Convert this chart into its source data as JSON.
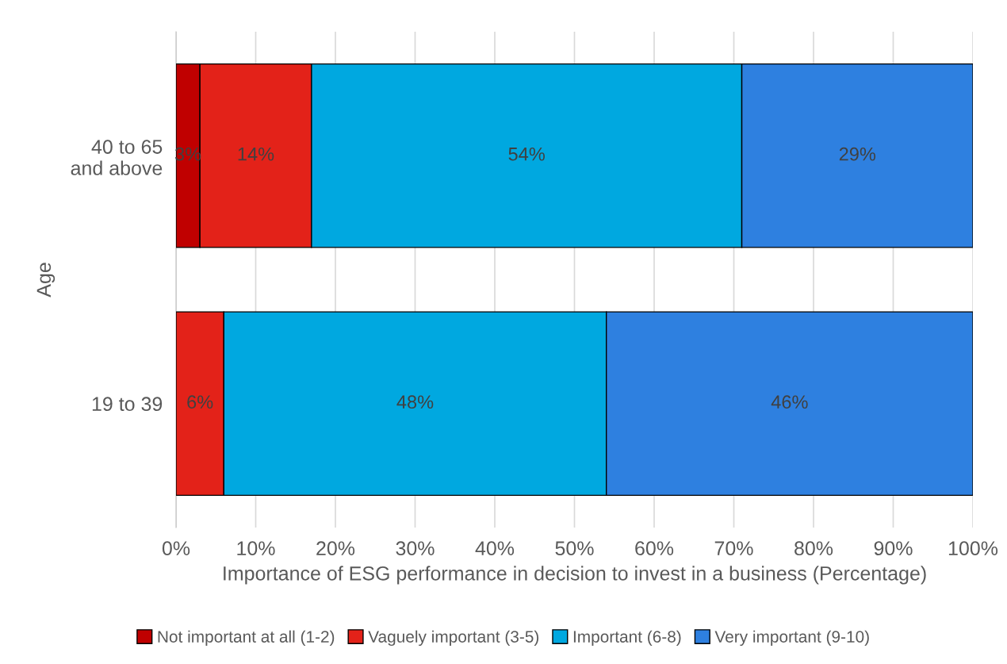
{
  "chart_data": {
    "type": "bar",
    "orientation": "horizontal",
    "stacked": true,
    "categories": [
      "40 to 65\nand above",
      "19 to 39"
    ],
    "series": [
      {
        "name": "Not important at all (1-2)",
        "color": "#c00000",
        "values": [
          3,
          null
        ],
        "value_labels": [
          "3%",
          null
        ]
      },
      {
        "name": "Vaguely important (3-5)",
        "color": "#e32219",
        "values": [
          14,
          6
        ],
        "value_labels": [
          "14%",
          "6%"
        ]
      },
      {
        "name": "Important (6-8)",
        "color": "#00a8e0",
        "values": [
          54,
          48
        ],
        "value_labels": [
          "54%",
          "48%"
        ]
      },
      {
        "name": "Very important (9-10)",
        "color": "#2e80e0",
        "values": [
          29,
          46
        ],
        "value_labels": [
          "29%",
          "46%"
        ]
      }
    ],
    "xlim": [
      0,
      100
    ],
    "xticks": [
      {
        "value": 0,
        "label": "0%"
      },
      {
        "value": 10,
        "label": "10%"
      },
      {
        "value": 20,
        "label": "20%"
      },
      {
        "value": 30,
        "label": "30%"
      },
      {
        "value": 40,
        "label": "40%"
      },
      {
        "value": 50,
        "label": "50%"
      },
      {
        "value": 60,
        "label": "60%"
      },
      {
        "value": 70,
        "label": "70%"
      },
      {
        "value": 80,
        "label": "80%"
      },
      {
        "value": 90,
        "label": "90%"
      },
      {
        "value": 100,
        "label": "100%"
      }
    ],
    "xlabel": "Importance of ESG performance in decision to invest in a business (Percentage)",
    "ylabel": "Age",
    "grid": "x",
    "legend": "bottom"
  }
}
